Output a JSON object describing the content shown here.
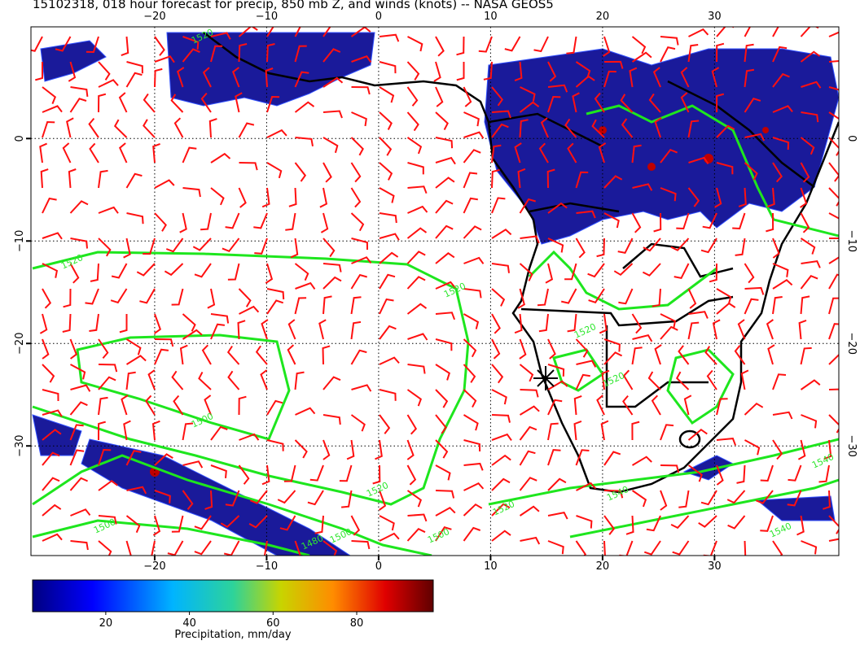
{
  "map": {
    "title": "15102318, 018 hour forecast for precip, 850 mb Z, and winds (knots) -- NASA GEOS5",
    "lonlim": [
      -31.05,
      41.1
    ],
    "latlim": [
      -40.7,
      10.9
    ],
    "lonticks": [
      {
        "value": -20,
        "label": "−20"
      },
      {
        "value": -10,
        "label": "−10"
      },
      0,
      10,
      20,
      30
    ],
    "latticks": [
      0,
      {
        "value": -10,
        "label": "−10"
      },
      {
        "value": -20,
        "label": "−20"
      },
      {
        "value": -30,
        "label": "−30"
      }
    ],
    "contour_labels": [
      "1520",
      "1520",
      "1520",
      "1520",
      "1500",
      "1520",
      "1500",
      "1540",
      "1520",
      "1540",
      "1500",
      "1480",
      "1500",
      "1540",
      "1520"
    ],
    "colorbar": {
      "label": "Precipitation, mm/day",
      "range": [
        2.5,
        98.3
      ],
      "ticks": [
        20,
        40,
        60,
        80
      ]
    }
  }
}
